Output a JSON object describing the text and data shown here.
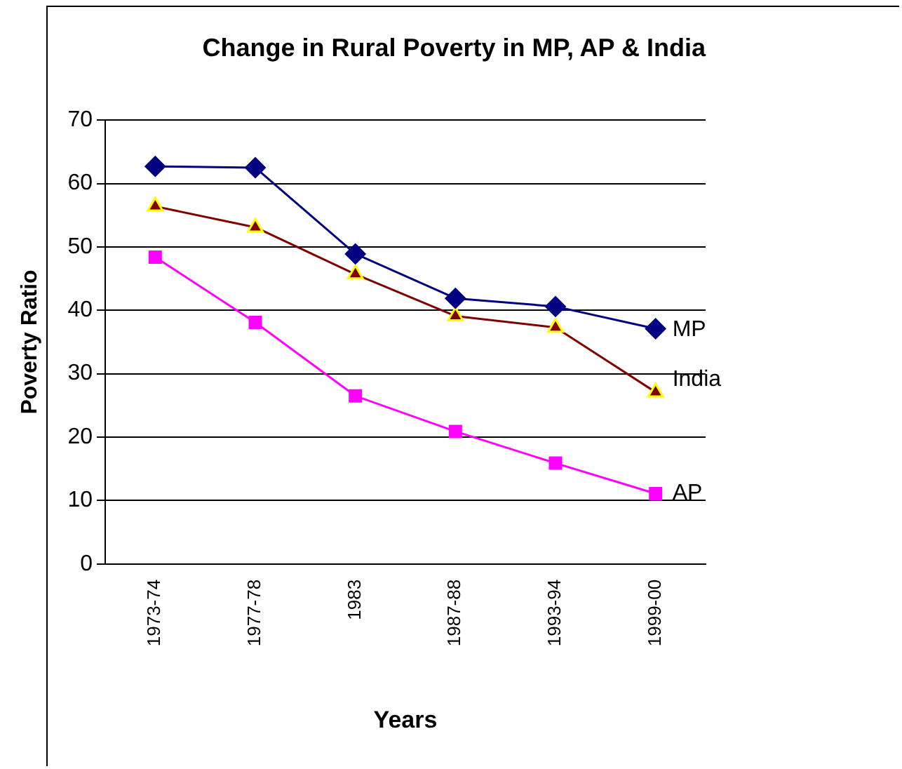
{
  "chart_data": {
    "type": "line",
    "title": "Change in Rural Poverty in MP, AP & India",
    "xlabel": "Years",
    "ylabel": "Poverty Ratio",
    "categories": [
      "1973-74",
      "1977-78",
      "1983",
      "1987-88",
      "1993-94",
      "1999-00"
    ],
    "series": [
      {
        "name": "MP",
        "color": "#000080",
        "marker": "diamond",
        "values": [
          62.7,
          62.5,
          48.9,
          41.9,
          40.6,
          37.1
        ]
      },
      {
        "name": "India",
        "color": "#800000",
        "marker": "triangle",
        "values": [
          56.4,
          53.1,
          45.7,
          39.1,
          37.3,
          27.1
        ]
      },
      {
        "name": "AP",
        "color": "#ff00ff",
        "marker": "square",
        "values": [
          48.4,
          38.1,
          26.5,
          20.9,
          15.9,
          11.1
        ]
      }
    ],
    "ylim": [
      0,
      70
    ],
    "yticks": [
      0,
      10,
      20,
      30,
      40,
      50,
      60,
      70
    ],
    "grid": "y",
    "legend": false
  }
}
